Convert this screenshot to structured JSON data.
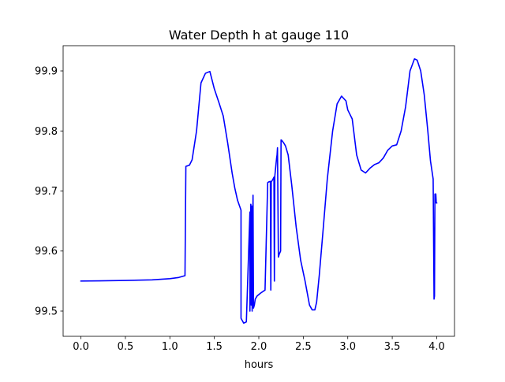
{
  "chart_data": {
    "type": "line",
    "title": "Water Depth h at gauge 110",
    "xlabel": "hours",
    "ylabel": "",
    "xlim": [
      -0.2,
      4.2
    ],
    "ylim": [
      99.458,
      99.942
    ],
    "x_ticks": [
      0.0,
      0.5,
      1.0,
      1.5,
      2.0,
      2.5,
      3.0,
      3.5,
      4.0
    ],
    "x_tick_labels": [
      "0.0",
      "0.5",
      "1.0",
      "1.5",
      "2.0",
      "2.5",
      "3.0",
      "3.5",
      "4.0"
    ],
    "y_ticks": [
      99.5,
      99.6,
      99.7,
      99.8,
      99.9
    ],
    "y_tick_labels": [
      "99.5",
      "99.6",
      "99.7",
      "99.8",
      "99.9"
    ],
    "grid": false,
    "line_color": "#0000ff",
    "series": [
      {
        "name": "",
        "x": [
          0.0,
          0.5,
          0.8,
          1.0,
          1.1,
          1.17,
          1.18,
          1.22,
          1.25,
          1.3,
          1.35,
          1.4,
          1.45,
          1.5,
          1.55,
          1.6,
          1.65,
          1.7,
          1.73,
          1.76,
          1.8,
          1.8,
          1.83,
          1.86,
          1.9,
          1.9,
          1.91,
          1.915,
          1.92,
          1.925,
          1.935,
          1.94,
          1.95,
          1.96,
          1.98,
          2.02,
          2.07,
          2.1,
          2.11,
          2.13,
          2.135,
          2.14,
          2.16,
          2.17,
          2.175,
          2.18,
          2.19,
          2.2,
          2.205,
          2.21,
          2.22,
          2.23,
          2.245,
          2.25,
          2.26,
          2.265,
          2.27,
          2.28,
          2.3,
          2.33,
          2.37,
          2.42,
          2.47,
          2.52,
          2.57,
          2.6,
          2.63,
          2.65,
          2.68,
          2.72,
          2.77,
          2.83,
          2.88,
          2.93,
          2.98,
          3.0,
          3.05,
          3.1,
          3.15,
          3.2,
          3.25,
          3.3,
          3.35,
          3.4,
          3.45,
          3.5,
          3.55,
          3.6,
          3.65,
          3.7,
          3.75,
          3.78,
          3.82,
          3.86,
          3.9,
          3.93,
          3.96,
          3.97,
          3.975,
          3.98,
          3.985,
          3.99,
          3.995,
          4.0
        ],
        "y": [
          99.55,
          99.551,
          99.552,
          99.554,
          99.556,
          99.559,
          99.741,
          99.743,
          99.752,
          99.8,
          99.88,
          99.896,
          99.899,
          99.87,
          99.848,
          99.825,
          99.78,
          99.73,
          99.705,
          99.685,
          99.668,
          99.488,
          99.48,
          99.482,
          99.665,
          99.5,
          99.678,
          99.51,
          99.675,
          99.5,
          99.693,
          99.505,
          99.51,
          99.52,
          99.525,
          99.53,
          99.535,
          99.714,
          99.715,
          99.716,
          99.535,
          99.715,
          99.72,
          99.723,
          99.55,
          99.725,
          99.74,
          99.755,
          99.76,
          99.772,
          99.59,
          99.595,
          99.6,
          99.785,
          99.784,
          99.783,
          99.782,
          99.78,
          99.775,
          99.76,
          99.71,
          99.64,
          99.585,
          99.55,
          99.51,
          99.502,
          99.502,
          99.515,
          99.56,
          99.63,
          99.72,
          99.8,
          99.845,
          99.858,
          99.85,
          99.835,
          99.82,
          99.76,
          99.735,
          99.73,
          99.738,
          99.744,
          99.747,
          99.755,
          99.768,
          99.775,
          99.777,
          99.8,
          99.84,
          99.9,
          99.92,
          99.918,
          99.9,
          99.86,
          99.8,
          99.75,
          99.72,
          99.52,
          99.525,
          99.695,
          99.69,
          99.695,
          99.68,
          99.68
        ]
      }
    ]
  }
}
